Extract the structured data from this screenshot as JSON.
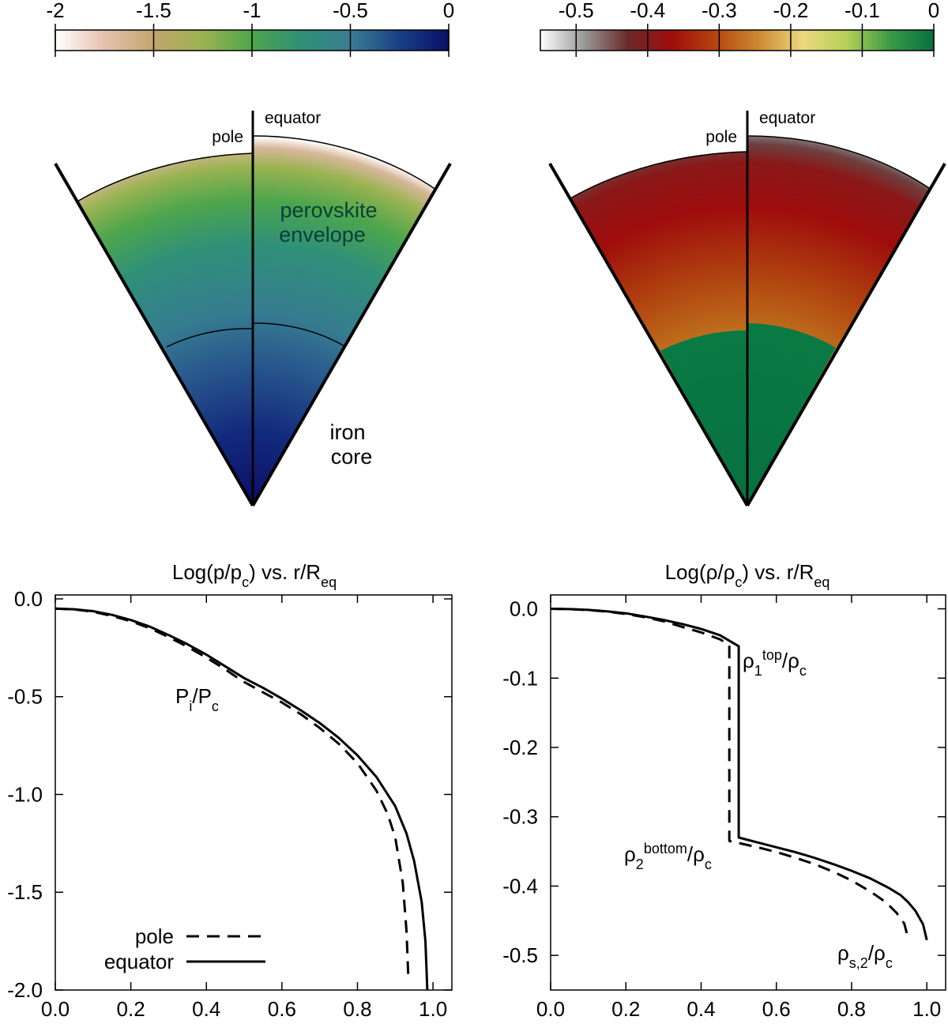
{
  "colorbars": [
    {
      "ticks": [
        "-2",
        "-1.5",
        "-1",
        "-0.5",
        "0"
      ],
      "tick_values": [
        -2,
        -1.5,
        -1,
        -0.5,
        0
      ],
      "range": [
        -2.0,
        0.0
      ],
      "stops": [
        "#ffffff",
        "#e6c0b0",
        "#c2a56e",
        "#9bb352",
        "#4ea64c",
        "#2f8f74",
        "#3a7d92",
        "#1a3f85",
        "#0a0f66"
      ]
    },
    {
      "ticks": [
        "-0.5",
        "-0.4",
        "-0.3",
        "-0.2",
        "-0.1",
        "0"
      ],
      "tick_values": [
        -0.5,
        -0.4,
        -0.3,
        -0.2,
        -0.1,
        0
      ],
      "range": [
        -0.55,
        0.0
      ],
      "stops": [
        "#ffffff",
        "#999999",
        "#6a2a2a",
        "#9e0c0c",
        "#b5450e",
        "#cc8a32",
        "#ecd87e",
        "#b7d058",
        "#3a9a46",
        "#077040"
      ]
    }
  ],
  "wedges": [
    {
      "pole_label": "pole",
      "equator_label": "equator",
      "envelope_label_line1": "perovskite",
      "envelope_label_line2": "envelope",
      "core_label_line1": "iron",
      "core_label_line2": "core"
    },
    {
      "pole_label": "pole",
      "equator_label": "equator"
    }
  ],
  "chart_data": [
    {
      "type": "line",
      "title": "Log(p/p_c) vs. r/R_eq",
      "xlim": [
        0.0,
        1.05
      ],
      "ylim": [
        -2.0,
        0.02
      ],
      "x_ticks": [
        "0.0",
        "0.2",
        "0.4",
        "0.6",
        "0.8",
        "1.0"
      ],
      "x_tick_values": [
        0,
        0.2,
        0.4,
        0.6,
        0.8,
        1.0
      ],
      "y_ticks": [
        "0.0",
        "-0.5",
        "-1.0",
        "-1.5",
        "-2.0"
      ],
      "y_tick_values": [
        0,
        -0.5,
        -1.0,
        -1.5,
        -2.0
      ],
      "annotations": [
        {
          "text": "P_i/P_c",
          "x": 0.37,
          "y": -0.42
        }
      ],
      "legend_position": "bottom-left",
      "series": [
        {
          "name": "pole",
          "style": "dashed",
          "x": [
            0.0,
            0.05,
            0.1,
            0.15,
            0.2,
            0.25,
            0.3,
            0.35,
            0.4,
            0.45,
            0.48,
            0.5,
            0.55,
            0.6,
            0.65,
            0.7,
            0.75,
            0.8,
            0.85,
            0.88,
            0.9,
            0.92,
            0.93,
            0.935
          ],
          "y": [
            -0.05,
            -0.054,
            -0.066,
            -0.087,
            -0.114,
            -0.15,
            -0.195,
            -0.245,
            -0.3,
            -0.36,
            -0.4,
            -0.425,
            -0.478,
            -0.53,
            -0.59,
            -0.66,
            -0.74,
            -0.84,
            -0.98,
            -1.1,
            -1.22,
            -1.45,
            -1.7,
            -1.95
          ]
        },
        {
          "name": "equator",
          "style": "solid",
          "x": [
            0.0,
            0.05,
            0.1,
            0.15,
            0.2,
            0.25,
            0.3,
            0.35,
            0.4,
            0.45,
            0.5,
            0.55,
            0.6,
            0.65,
            0.7,
            0.75,
            0.8,
            0.85,
            0.9,
            0.93,
            0.95,
            0.97,
            0.98,
            0.985
          ],
          "y": [
            -0.05,
            -0.053,
            -0.063,
            -0.082,
            -0.108,
            -0.142,
            -0.185,
            -0.232,
            -0.285,
            -0.345,
            -0.405,
            -0.455,
            -0.51,
            -0.57,
            -0.635,
            -0.71,
            -0.8,
            -0.91,
            -1.06,
            -1.2,
            -1.34,
            -1.55,
            -1.75,
            -2.0
          ]
        }
      ]
    },
    {
      "type": "line",
      "title": "Log(ρ/ρ_c) vs. r/R_eq",
      "xlim": [
        0.0,
        1.05
      ],
      "ylim": [
        -0.55,
        0.02
      ],
      "x_ticks": [
        "0.0",
        "0.2",
        "0.4",
        "0.6",
        "0.8",
        "1.0"
      ],
      "x_tick_values": [
        0,
        0.2,
        0.4,
        0.6,
        0.8,
        1.0
      ],
      "y_ticks": [
        "0.0",
        "-0.1",
        "-0.2",
        "-0.3",
        "-0.4",
        "-0.5"
      ],
      "y_tick_values": [
        0,
        -0.1,
        -0.2,
        -0.3,
        -0.4,
        -0.5
      ],
      "annotations": [
        {
          "text": "ρ1^top/ρc",
          "x": 0.52,
          "y": -0.08
        },
        {
          "text": "ρ2^bottom/ρc",
          "x": 0.36,
          "y": -0.355
        },
        {
          "text": "ρs,2/ρc",
          "x": 0.82,
          "y": -0.5
        }
      ],
      "series": [
        {
          "name": "pole",
          "style": "dashed",
          "x": [
            0.0,
            0.05,
            0.1,
            0.15,
            0.2,
            0.25,
            0.3,
            0.35,
            0.4,
            0.45,
            0.475,
            0.475,
            0.5,
            0.55,
            0.6,
            0.65,
            0.7,
            0.75,
            0.8,
            0.85,
            0.88,
            0.9,
            0.92,
            0.94,
            0.95
          ],
          "y": [
            0.0,
            -0.0004,
            -0.0018,
            -0.004,
            -0.0075,
            -0.012,
            -0.018,
            -0.026,
            -0.034,
            -0.044,
            -0.052,
            -0.335,
            -0.338,
            -0.344,
            -0.351,
            -0.359,
            -0.368,
            -0.379,
            -0.392,
            -0.408,
            -0.419,
            -0.428,
            -0.439,
            -0.454,
            -0.475
          ]
        },
        {
          "name": "equator",
          "style": "solid",
          "x": [
            0.0,
            0.05,
            0.1,
            0.15,
            0.2,
            0.25,
            0.3,
            0.35,
            0.4,
            0.45,
            0.5,
            0.5,
            0.55,
            0.6,
            0.65,
            0.7,
            0.75,
            0.8,
            0.85,
            0.9,
            0.93,
            0.95,
            0.97,
            0.99,
            1.0
          ],
          "y": [
            0.0,
            -0.0004,
            -0.0016,
            -0.0036,
            -0.0065,
            -0.011,
            -0.016,
            -0.022,
            -0.029,
            -0.038,
            -0.054,
            -0.33,
            -0.337,
            -0.344,
            -0.351,
            -0.359,
            -0.368,
            -0.378,
            -0.389,
            -0.403,
            -0.413,
            -0.423,
            -0.436,
            -0.455,
            -0.478
          ]
        }
      ]
    }
  ]
}
